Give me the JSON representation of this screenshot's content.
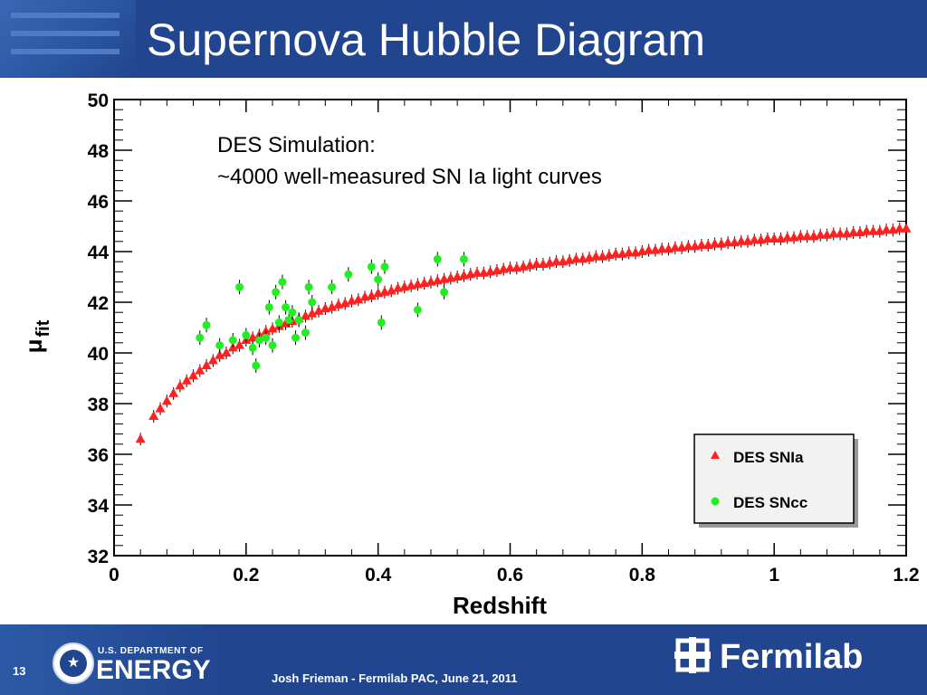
{
  "header": {
    "title": "Supernova Hubble Diagram"
  },
  "footer": {
    "page_number": "13",
    "doe_small": "U.S. DEPARTMENT OF",
    "doe_big": "ENERGY",
    "credit": "Josh Frieman  -  Fermilab PAC, June 21, 2011",
    "lab_name": "Fermilab"
  },
  "colors": {
    "header": "#21458e",
    "snia": "#ff2020",
    "sncc": "#22ee22"
  },
  "chart_data": {
    "type": "scatter",
    "xlabel": "Redshift",
    "ylabel": "μ",
    "ylabel_sub": "fit",
    "xlim": [
      0,
      1.2
    ],
    "ylim": [
      32,
      50
    ],
    "xticks": [
      0,
      0.2,
      0.4,
      0.6,
      0.8,
      1,
      1.2
    ],
    "xtick_labels": [
      "0",
      "0.2",
      "0.4",
      "0.6",
      "0.8",
      "1",
      "1.2"
    ],
    "yticks": [
      32,
      34,
      36,
      38,
      40,
      42,
      44,
      46,
      48,
      50
    ],
    "ytick_labels": [
      "32",
      "34",
      "36",
      "38",
      "40",
      "42",
      "44",
      "46",
      "48",
      "50"
    ],
    "annotation": [
      "DES Simulation:",
      "~4000 well-measured SN Ia light curves"
    ],
    "legend_position": "bottom-right",
    "series": [
      {
        "name": "DES SNIa",
        "marker": "triangle",
        "color": "#ff2020",
        "x": [
          0.04,
          0.06,
          0.07,
          0.08,
          0.09,
          0.1,
          0.11,
          0.12,
          0.13,
          0.14,
          0.15,
          0.16,
          0.17,
          0.18,
          0.19,
          0.2,
          0.21,
          0.22,
          0.23,
          0.24,
          0.25,
          0.26,
          0.27,
          0.28,
          0.29,
          0.3,
          0.31,
          0.32,
          0.33,
          0.34,
          0.35,
          0.36,
          0.37,
          0.38,
          0.39,
          0.4,
          0.41,
          0.42,
          0.43,
          0.44,
          0.45,
          0.46,
          0.47,
          0.48,
          0.49,
          0.5,
          0.51,
          0.52,
          0.53,
          0.54,
          0.55,
          0.56,
          0.57,
          0.58,
          0.59,
          0.6,
          0.61,
          0.62,
          0.63,
          0.64,
          0.65,
          0.66,
          0.67,
          0.68,
          0.69,
          0.7,
          0.71,
          0.72,
          0.73,
          0.74,
          0.75,
          0.76,
          0.77,
          0.78,
          0.79,
          0.8,
          0.81,
          0.82,
          0.83,
          0.84,
          0.85,
          0.86,
          0.87,
          0.88,
          0.89,
          0.9,
          0.91,
          0.92,
          0.93,
          0.94,
          0.95,
          0.96,
          0.97,
          0.98,
          0.99,
          1.0,
          1.01,
          1.02,
          1.03,
          1.04,
          1.05,
          1.06,
          1.07,
          1.08,
          1.09,
          1.1,
          1.11,
          1.12,
          1.13,
          1.14,
          1.15,
          1.16,
          1.17,
          1.18,
          1.19,
          1.2
        ],
        "y": [
          36.6,
          37.5,
          37.8,
          38.1,
          38.4,
          38.7,
          38.9,
          39.1,
          39.3,
          39.5,
          39.7,
          39.9,
          40.0,
          40.2,
          40.3,
          40.5,
          40.6,
          40.7,
          40.85,
          40.95,
          41.05,
          41.15,
          41.25,
          41.35,
          41.45,
          41.55,
          41.65,
          41.75,
          41.8,
          41.9,
          41.95,
          42.05,
          42.1,
          42.2,
          42.25,
          42.35,
          42.4,
          42.45,
          42.55,
          42.6,
          42.65,
          42.7,
          42.75,
          42.8,
          42.85,
          42.9,
          42.95,
          43.0,
          43.05,
          43.1,
          43.15,
          43.15,
          43.2,
          43.25,
          43.3,
          43.35,
          43.35,
          43.4,
          43.45,
          43.5,
          43.5,
          43.55,
          43.6,
          43.6,
          43.65,
          43.7,
          43.7,
          43.75,
          43.8,
          43.8,
          43.85,
          43.9,
          43.9,
          43.95,
          43.95,
          44.0,
          44.05,
          44.05,
          44.1,
          44.1,
          44.15,
          44.15,
          44.2,
          44.2,
          44.25,
          44.25,
          44.3,
          44.3,
          44.35,
          44.35,
          44.4,
          44.4,
          44.45,
          44.45,
          44.5,
          44.5,
          44.5,
          44.55,
          44.55,
          44.6,
          44.6,
          44.6,
          44.65,
          44.65,
          44.7,
          44.7,
          44.7,
          44.75,
          44.75,
          44.8,
          44.8,
          44.8,
          44.85,
          44.85,
          44.9,
          44.9
        ]
      },
      {
        "name": "DES SNcc",
        "marker": "circle",
        "color": "#22ee22",
        "x": [
          0.13,
          0.14,
          0.16,
          0.18,
          0.19,
          0.2,
          0.21,
          0.215,
          0.22,
          0.23,
          0.235,
          0.24,
          0.245,
          0.25,
          0.255,
          0.26,
          0.265,
          0.27,
          0.275,
          0.28,
          0.29,
          0.295,
          0.3,
          0.33,
          0.355,
          0.39,
          0.4,
          0.405,
          0.41,
          0.46,
          0.49,
          0.5,
          0.53
        ],
        "y": [
          40.6,
          41.1,
          40.3,
          40.5,
          42.6,
          40.7,
          40.2,
          39.5,
          40.5,
          40.6,
          41.8,
          40.3,
          42.4,
          41.2,
          42.8,
          41.8,
          41.3,
          41.6,
          40.6,
          41.3,
          40.8,
          42.6,
          42.0,
          42.6,
          43.1,
          43.4,
          42.9,
          41.2,
          43.4,
          41.7,
          43.7,
          42.4,
          43.7
        ]
      }
    ]
  }
}
